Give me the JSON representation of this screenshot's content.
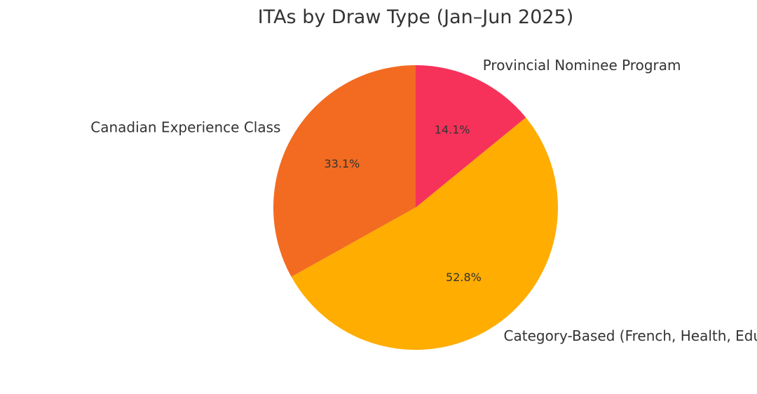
{
  "chart_data": {
    "type": "pie",
    "title": "ITAs by Draw Type (Jan–Jun 2025)",
    "start_angle_deg": 90,
    "direction": "counterclockwise",
    "legend": "none",
    "slices": [
      {
        "label": "Canadian Experience Class",
        "value": 33.1,
        "pct_label": "33.1%",
        "color": "#f26b21"
      },
      {
        "label": "Category-Based (French, Health, Education)",
        "value": 52.8,
        "pct_label": "52.8%",
        "color": "#ffad00"
      },
      {
        "label": "Provincial Nominee Program",
        "value": 14.1,
        "pct_label": "14.1%",
        "color": "#f7325a"
      }
    ]
  }
}
